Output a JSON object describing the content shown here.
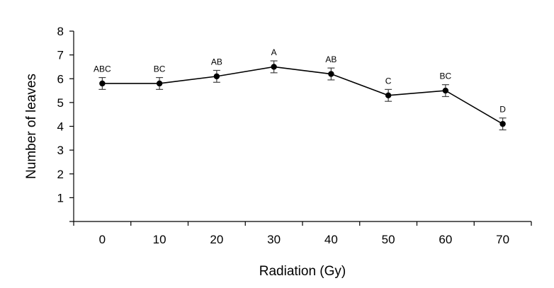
{
  "chart_data": {
    "type": "line",
    "title": "",
    "xlabel": "Radiation (Gy)",
    "ylabel": "Number of leaves",
    "x": [
      0,
      10,
      20,
      30,
      40,
      50,
      60,
      70
    ],
    "categories": [
      "0",
      "10",
      "20",
      "30",
      "40",
      "50",
      "60",
      "70"
    ],
    "ylim": [
      0,
      8
    ],
    "yticks": [
      "1",
      "2",
      "3",
      "4",
      "5",
      "6",
      "7",
      "8"
    ],
    "grid": false,
    "series": [
      {
        "values": [
          5.8,
          5.8,
          6.1,
          6.5,
          6.2,
          5.3,
          5.5,
          4.1
        ],
        "errors": [
          0.25,
          0.25,
          0.25,
          0.25,
          0.25,
          0.25,
          0.25,
          0.25
        ],
        "labels": [
          "ABC",
          "BC",
          "AB",
          "A",
          "AB",
          "C",
          "BC",
          "D"
        ]
      }
    ],
    "colors": {
      "line": "#000000",
      "marker": "#000000",
      "error_bar": "#404040",
      "axis": "#000000"
    }
  }
}
